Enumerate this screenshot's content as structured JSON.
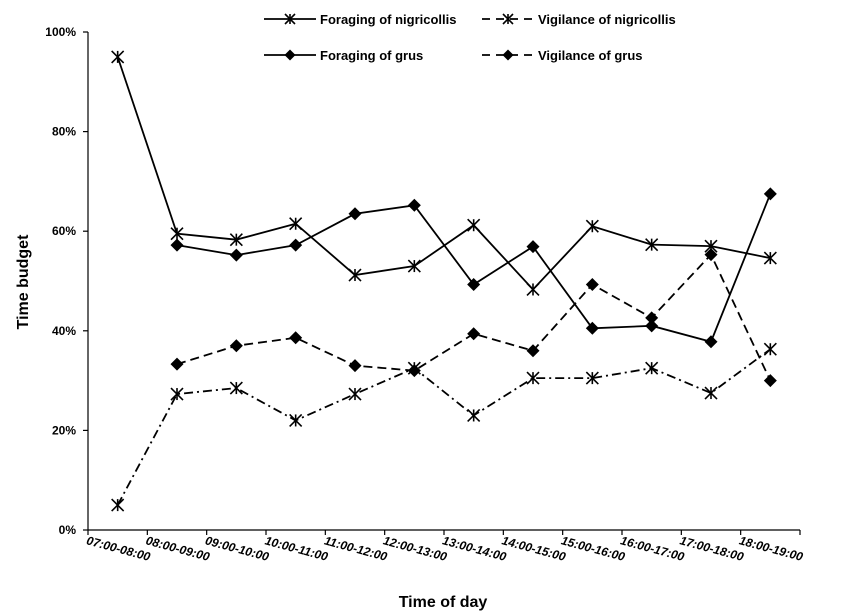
{
  "chart_data": {
    "type": "line",
    "title": "",
    "xlabel": "Time  of day",
    "ylabel": "Time  budget",
    "categories": [
      "07:00-08:00",
      "08:00-09:00",
      "09:00-10:00",
      "10:00-11:00",
      "11:00-12:00",
      "12:00-13:00",
      "13:00-14:00",
      "14:00-15:00",
      "15:00-16:00",
      "16:00-17:00",
      "17:00-18:00",
      "18:00-19:00"
    ],
    "ylim": [
      0,
      100
    ],
    "yticks": [
      "0%",
      "20%",
      "40%",
      "60%",
      "80%",
      "100%"
    ],
    "grid": false,
    "legend_position": "top",
    "series": [
      {
        "name": "Foraging of nigricollis",
        "marker": "asterisk",
        "style": "solid",
        "values": [
          95,
          59.5,
          58.3,
          61.5,
          51.2,
          53,
          61.2,
          48.3,
          61,
          57.3,
          57,
          54.6
        ]
      },
      {
        "name": "Vigilance of nigricollis",
        "marker": "asterisk",
        "style": "dash-dot",
        "values": [
          5,
          27.3,
          28.5,
          22,
          27.3,
          32.5,
          23,
          30.5,
          30.5,
          32.5,
          27.5,
          36.3
        ]
      },
      {
        "name": "Foraging of grus",
        "marker": "diamond",
        "style": "solid",
        "values": [
          null,
          57.2,
          55.2,
          57.2,
          63.5,
          65.2,
          49.3,
          56.9,
          40.5,
          41,
          37.8,
          67.5
        ]
      },
      {
        "name": "Vigilance of grus",
        "marker": "diamond",
        "style": "dashed",
        "values": [
          null,
          33.3,
          37,
          38.6,
          33,
          32,
          39.4,
          36,
          49.3,
          42.6,
          55.3,
          30
        ]
      }
    ],
    "legend": [
      {
        "label": "Foraging of nigricollis"
      },
      {
        "label": "Vigilance of nigricollis"
      },
      {
        "label": "Foraging of grus"
      },
      {
        "label": "Vigilance of grus"
      }
    ]
  }
}
